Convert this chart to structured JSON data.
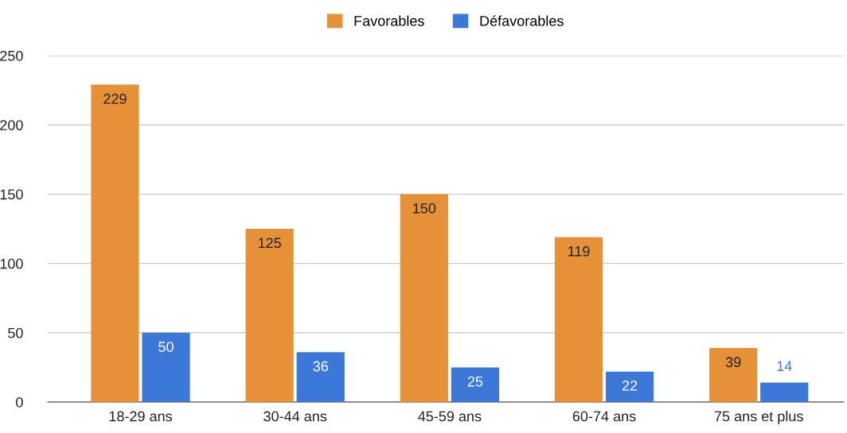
{
  "chart_data": {
    "type": "bar",
    "categories": [
      "18-29 ans",
      "30-44 ans",
      "45-59 ans",
      "60-74 ans",
      "75 ans et plus"
    ],
    "series": [
      {
        "name": "Favorables",
        "color": "#e69138",
        "values": [
          229,
          125,
          150,
          119,
          39
        ]
      },
      {
        "name": "Défavorables",
        "color": "#3c78d8",
        "values": [
          50,
          36,
          25,
          22,
          14
        ]
      }
    ],
    "ylim": [
      0,
      250
    ],
    "yticks": [
      0,
      50,
      100,
      150,
      200,
      250
    ],
    "grid": "y",
    "legend": "top",
    "data_labels": true
  }
}
